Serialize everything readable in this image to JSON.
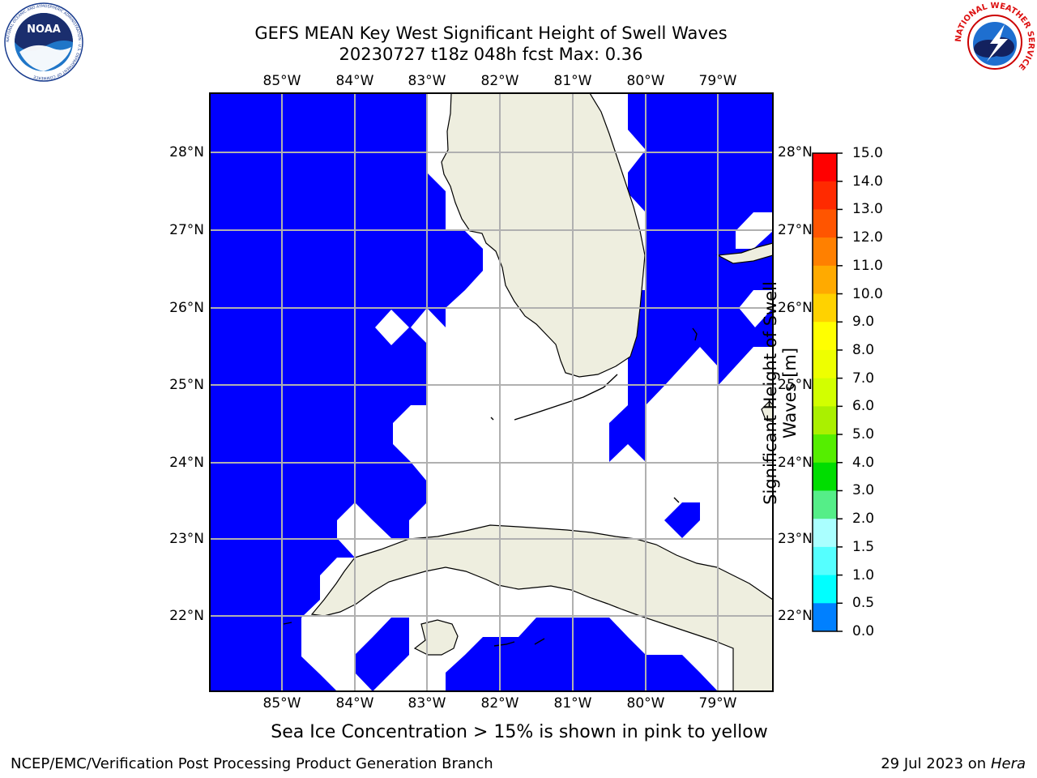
{
  "title": {
    "line1": "GEFS MEAN Key West Significant Height of Swell Waves",
    "line2": "20230727 t18z 048h fcst   Max: 0.36"
  },
  "map": {
    "lon_ticks": [
      "85°W",
      "84°W",
      "83°W",
      "82°W",
      "81°W",
      "80°W",
      "79°W"
    ],
    "lat_ticks": [
      "28°N",
      "27°N",
      "26°N",
      "25°N",
      "24°N",
      "23°N",
      "22°N"
    ],
    "colors": {
      "swell": "#0000ff",
      "land": "#eeeedf",
      "grid": "#b0b0b0",
      "coast": "#000000"
    }
  },
  "colorbar": {
    "label_line1": "Significant Height of Swell",
    "label_line2": "Waves [m]",
    "ticks": [
      "15.0",
      "14.0",
      "13.0",
      "12.0",
      "11.0",
      "10.0",
      "9.0",
      "8.0",
      "7.0",
      "6.0",
      "5.0",
      "4.0",
      "3.0",
      "2.0",
      "1.5",
      "1.0",
      "0.5",
      "0.0"
    ],
    "colors": [
      "#ff0000",
      "#ff2a00",
      "#ff5500",
      "#ff8000",
      "#ffaa00",
      "#ffd200",
      "#ffff00",
      "#eeff00",
      "#d2ff00",
      "#aaf000",
      "#55ee00",
      "#00dd00",
      "#55ee88",
      "#aaffff",
      "#55ffff",
      "#00ffff",
      "#0080ff",
      "#0000ff"
    ]
  },
  "note": "Sea Ice Concentration > 15% is shown in pink to yellow",
  "footer": {
    "left": "NCEP/EMC/Verification Post Processing Product Generation Branch",
    "date": "29 Jul 2023 on ",
    "host": "Hera"
  },
  "logos": {
    "noaa_text": "NOAA",
    "noaa_ring": "NATIONAL OCEANIC AND ATMOSPHERIC ADMINISTRATION · U.S. DEPARTMENT OF COMMERCE",
    "nws_ring": "NATIONAL WEATHER SERVICE"
  }
}
